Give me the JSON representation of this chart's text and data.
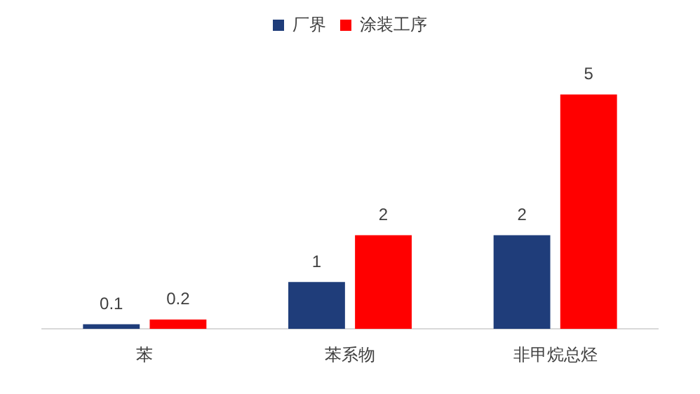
{
  "chart_data": {
    "type": "bar",
    "categories": [
      "苯",
      "苯系物",
      "非甲烷总烃"
    ],
    "series": [
      {
        "name": "厂界",
        "color": "#1f3d7a",
        "values": [
          0.1,
          1,
          2
        ]
      },
      {
        "name": "涂装工序",
        "color": "#ff0000",
        "values": [
          0.2,
          2,
          5
        ]
      }
    ],
    "data_labels": true,
    "legend": "top",
    "grid": false
  }
}
